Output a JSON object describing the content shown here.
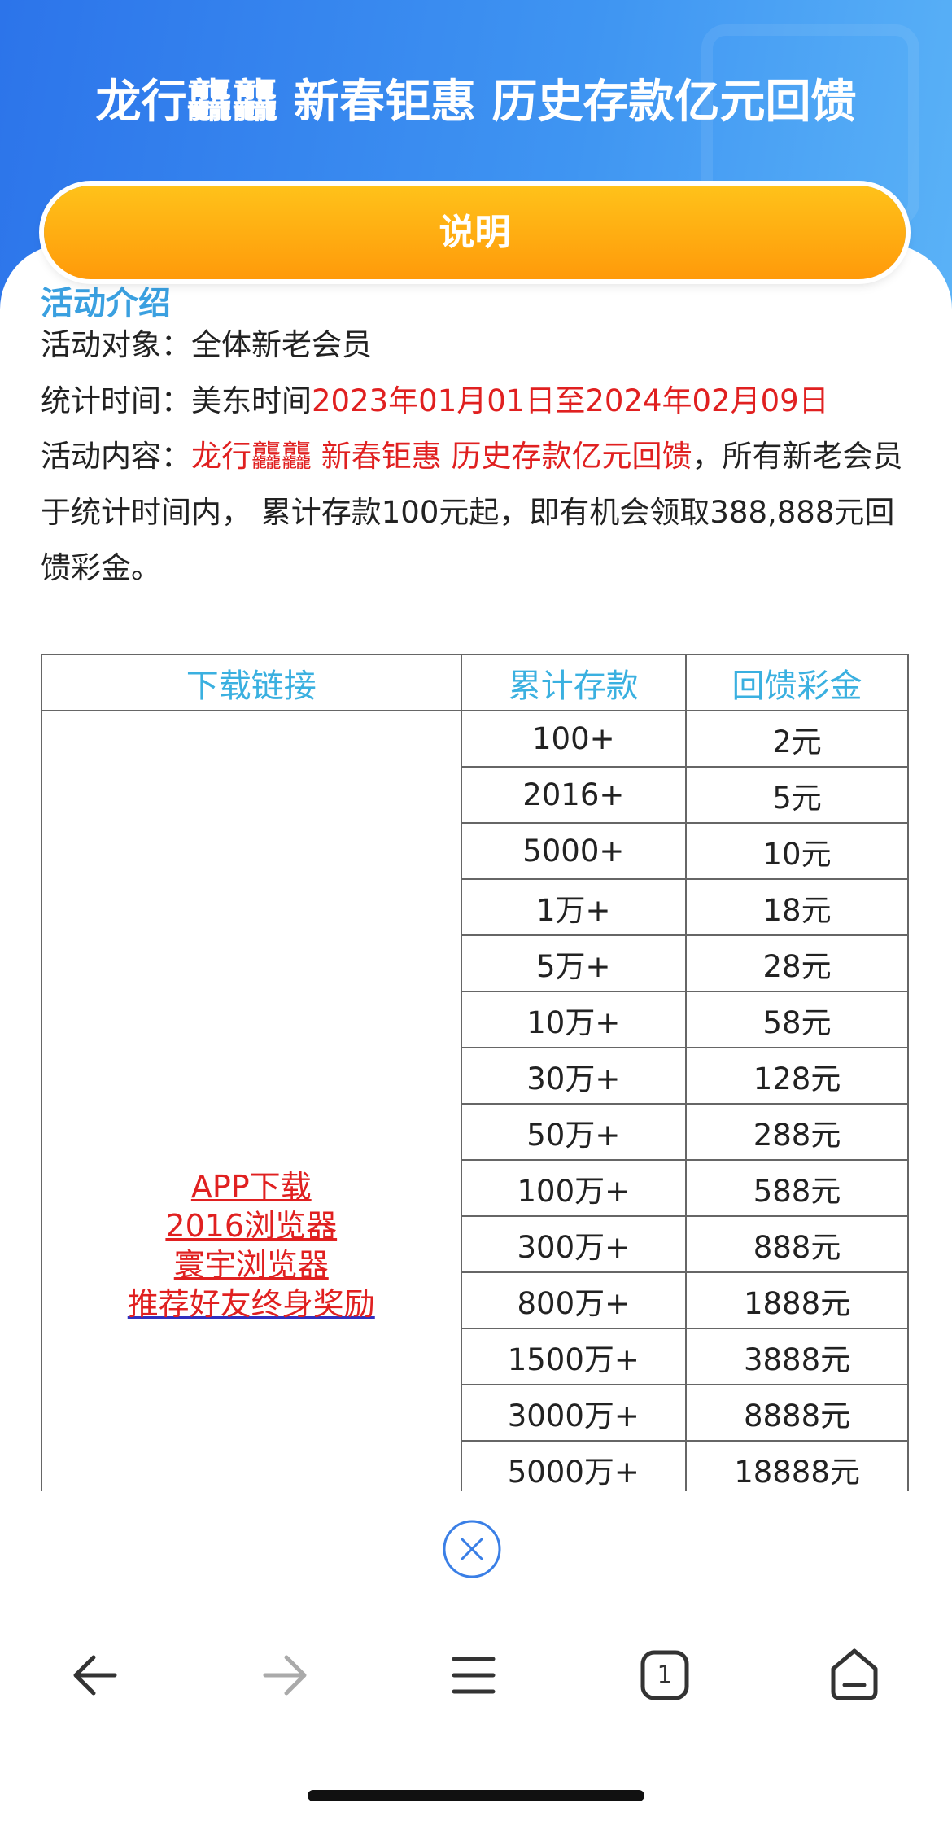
{
  "header": {
    "title": "龙行龘龘 新春钜惠 历史存款亿元回馈",
    "button": "说明"
  },
  "intro": {
    "heading": "活动介绍",
    "lines": [
      [
        {
          "text": "活动对象：",
          "red": false
        },
        {
          "text": "全体新老会员",
          "red": false
        }
      ],
      [
        {
          "text": "统计时间：",
          "red": false
        },
        {
          "text": "美东时间",
          "red": false
        },
        {
          "text": "2023年01月01日至2024年02月09日",
          "red": true
        }
      ],
      [
        {
          "text": "活动内容：",
          "red": false
        },
        {
          "text": "龙行龘龘 新春钜惠  历史存款亿元回馈",
          "red": true
        },
        {
          "text": "，所有新老会员于统计时间内， 累计存款100元起，即有机会领取388,888元回馈彩金。",
          "red": false
        }
      ]
    ]
  },
  "table": {
    "headers": [
      "下载链接",
      "累计存款",
      "回馈彩金"
    ],
    "links": [
      "APP下载",
      "2016浏览器",
      "寰宇浏览器",
      "推荐好友终身奖励"
    ],
    "rows": [
      [
        "100+",
        "2元"
      ],
      [
        "2016+",
        "5元"
      ],
      [
        "5000+",
        "10元"
      ],
      [
        "1万+",
        "18元"
      ],
      [
        "5万+",
        "28元"
      ],
      [
        "10万+",
        "58元"
      ],
      [
        "30万+",
        "128元"
      ],
      [
        "50万+",
        "288元"
      ],
      [
        "100万+",
        "588元"
      ],
      [
        "300万+",
        "888元"
      ],
      [
        "800万+",
        "1888元"
      ],
      [
        "1500万+",
        "3888元"
      ],
      [
        "3000万+",
        "8888元"
      ],
      [
        "5000万+",
        "18888元"
      ]
    ]
  },
  "toolbar": {
    "tab_count": "1"
  }
}
